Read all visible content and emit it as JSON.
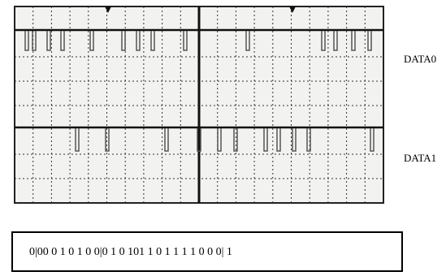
{
  "labels": {
    "data0": "DATA0",
    "data1": "DATA1"
  },
  "bit_sequence": "0|00 0 1 0 1 0 0|0 1 0 101 1 0 1 1 1 1 0 0 0| 1"
}
